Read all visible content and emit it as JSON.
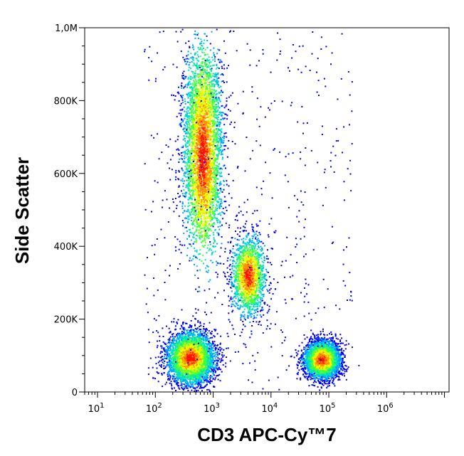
{
  "chart_data": {
    "type": "scatter",
    "plot_style": "density pseudocolor dot plot",
    "xlabel": "CD3 APC-Cy™7",
    "ylabel": "Side Scatter",
    "x_scale": "log",
    "y_scale": "linear",
    "xlim": [
      6,
      12000000
    ],
    "ylim": [
      0,
      1000000
    ],
    "x_ticks": [
      {
        "value": 10,
        "label_base": "10",
        "label_exp": "1"
      },
      {
        "value": 100,
        "label_base": "10",
        "label_exp": "2"
      },
      {
        "value": 1000,
        "label_base": "10",
        "label_exp": "3"
      },
      {
        "value": 10000,
        "label_base": "10",
        "label_exp": "4"
      },
      {
        "value": 100000,
        "label_base": "10",
        "label_exp": "5"
      },
      {
        "value": 1000000,
        "label_base": "10",
        "label_exp": "6"
      }
    ],
    "y_ticks": [
      {
        "value": 0,
        "label": "0"
      },
      {
        "value": 200000,
        "label": "200K"
      },
      {
        "value": 400000,
        "label": "400K"
      },
      {
        "value": 600000,
        "label": "600K"
      },
      {
        "value": 800000,
        "label": "800K"
      },
      {
        "value": 1000000,
        "label": "1,0M"
      }
    ],
    "density_colors": [
      "#0000ee",
      "#00a0ff",
      "#00e0c0",
      "#40ff40",
      "#e8ff00",
      "#ff9000",
      "#ff1000"
    ],
    "populations": [
      {
        "x_center": 650,
        "y_center": 650000,
        "x_spread_decades": 0.17,
        "y_spread": 180000,
        "y_range": [
          380000,
          1000000
        ],
        "density": "high"
      },
      {
        "x_center": 400,
        "y_center": 95000,
        "x_spread_decades": 0.2,
        "y_spread": 35000,
        "density": "high"
      },
      {
        "x_center": 4000,
        "y_center": 320000,
        "x_spread_decades": 0.15,
        "y_spread": 55000,
        "density": "medium"
      },
      {
        "x_center": 75000,
        "y_center": 90000,
        "x_spread_decades": 0.15,
        "y_spread": 25000,
        "density": "high"
      }
    ]
  }
}
